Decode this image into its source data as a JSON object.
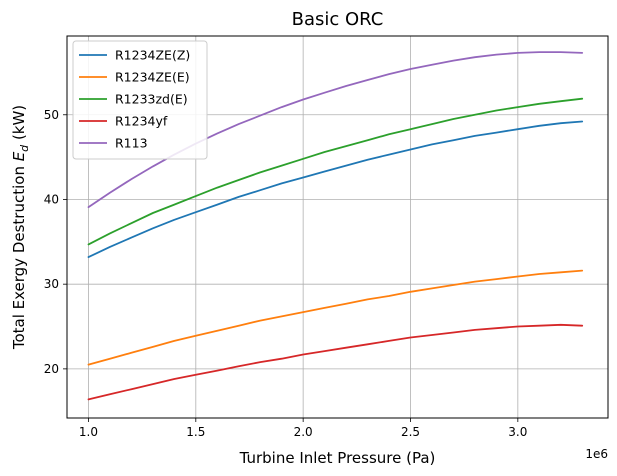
{
  "chart_data": {
    "type": "line",
    "title": "Basic ORC",
    "xlabel": "Turbine Inlet Pressure (Pa)",
    "ylabel_prefix": "Total Exergy Destruction ",
    "ylabel_var": "E",
    "ylabel_sub": "d",
    "ylabel_suffix": " (kW)",
    "x_offset_label": "1e6",
    "xlim": [
      0.9,
      3.42
    ],
    "ylim": [
      14.2,
      59.3
    ],
    "x_ticks": [
      1.0,
      1.5,
      2.0,
      2.5,
      3.0
    ],
    "x_tick_labels": [
      "1.0",
      "1.5",
      "2.0",
      "2.5",
      "3.0"
    ],
    "y_ticks": [
      20,
      30,
      40,
      50
    ],
    "y_tick_labels": [
      "20",
      "30",
      "40",
      "50"
    ],
    "grid": true,
    "legend_position": "top-left",
    "x": [
      1.0,
      1.1,
      1.2,
      1.3,
      1.4,
      1.5,
      1.6,
      1.7,
      1.8,
      1.9,
      2.0,
      2.1,
      2.2,
      2.3,
      2.4,
      2.5,
      2.6,
      2.7,
      2.8,
      2.9,
      3.0,
      3.1,
      3.2,
      3.3
    ],
    "series": [
      {
        "name": "R1234ZE(Z)",
        "color": "#1f77b4",
        "values": [
          33.2,
          34.4,
          35.5,
          36.6,
          37.6,
          38.5,
          39.4,
          40.3,
          41.1,
          41.9,
          42.6,
          43.3,
          44.0,
          44.7,
          45.3,
          45.9,
          46.5,
          47.0,
          47.5,
          47.9,
          48.3,
          48.7,
          49.0,
          49.2
        ]
      },
      {
        "name": "R1234ZE(E)",
        "color": "#ff7f0e",
        "values": [
          20.5,
          21.2,
          21.9,
          22.6,
          23.3,
          23.9,
          24.5,
          25.1,
          25.7,
          26.2,
          26.7,
          27.2,
          27.7,
          28.2,
          28.6,
          29.1,
          29.5,
          29.9,
          30.3,
          30.6,
          30.9,
          31.2,
          31.4,
          31.6
        ]
      },
      {
        "name": "R1233zd(E)",
        "color": "#2ca02c",
        "values": [
          34.7,
          36.0,
          37.2,
          38.4,
          39.4,
          40.4,
          41.4,
          42.3,
          43.2,
          44.0,
          44.8,
          45.6,
          46.3,
          47.0,
          47.7,
          48.3,
          48.9,
          49.5,
          50.0,
          50.5,
          50.9,
          51.3,
          51.6,
          51.9
        ]
      },
      {
        "name": "R1234yf",
        "color": "#d62728",
        "values": [
          16.4,
          17.0,
          17.6,
          18.2,
          18.8,
          19.3,
          19.8,
          20.3,
          20.8,
          21.2,
          21.7,
          22.1,
          22.5,
          22.9,
          23.3,
          23.7,
          24.0,
          24.3,
          24.6,
          24.8,
          25.0,
          25.1,
          25.2,
          25.1
        ]
      },
      {
        "name": "R113",
        "color": "#9467bd",
        "values": [
          39.1,
          40.8,
          42.4,
          43.9,
          45.3,
          46.6,
          47.8,
          48.9,
          49.9,
          50.9,
          51.8,
          52.6,
          53.4,
          54.1,
          54.8,
          55.4,
          55.9,
          56.4,
          56.8,
          57.1,
          57.3,
          57.4,
          57.4,
          57.3
        ]
      }
    ]
  }
}
